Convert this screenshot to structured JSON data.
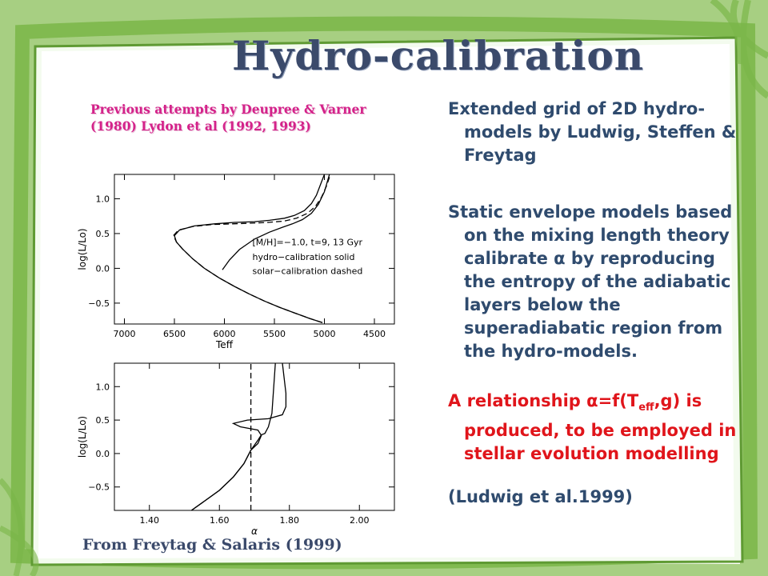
{
  "slide": {
    "title": "Hydro-calibration",
    "previous_attempts": "Previous attempts by Deupree & Varner (1980) Lydon et al (1992, 1993)",
    "paragraphs": {
      "grid": "Extended grid of 2D hydro-models by Ludwig, Steffen & Freytag",
      "static": "Static envelope models based on the mixing length theory calibrate α by reproducing the entropy of the adiabatic layers below the superadiabatic region from the hydro-models.",
      "relation_pre": "A relationship α=f(T",
      "relation_sub": "eff",
      "relation_post": ",g) is produced, to be employed in stellar evolution modelling",
      "reference": "(Ludwig et al.1999)"
    },
    "figure_caption": "From Freytag & Salaris (1999)",
    "colors": {
      "frame_green": "#7ab648",
      "title_blue": "#3b4a6b",
      "body_blue": "#2f4b6e",
      "magenta": "#d4228a",
      "red": "#e0151b"
    }
  },
  "chart_data": [
    {
      "type": "line",
      "title": "",
      "xlabel": "Teff",
      "ylabel": "log(L/Lo)",
      "xlim": [
        7100,
        4300
      ],
      "ylim": [
        -0.8,
        1.35
      ],
      "xticks": [
        7000,
        6500,
        6000,
        5500,
        5000,
        4500
      ],
      "xtick_labels": [
        "7000",
        "6500",
        "6000",
        "5500",
        "5000",
        "4500"
      ],
      "yticks": [
        -0.5,
        0.0,
        0.5,
        1.0
      ],
      "ytick_labels": [
        "−0.5",
        "0.0",
        "0.5",
        "1.0"
      ],
      "annotations": [
        "[M/H]=−1.0, t=9, 13 Gyr",
        "hydro−calibration solid",
        "solar−calibration dashed"
      ],
      "grid": false,
      "series": [
        {
          "style": "solid",
          "x": [
            5020,
            5150,
            5300,
            5450,
            5600,
            5750,
            5900,
            6050,
            6200,
            6320,
            6420,
            6480,
            6500,
            6450,
            6300,
            6100,
            5900,
            5700,
            5550,
            5400,
            5300,
            5200,
            5130,
            5080,
            5040,
            5000
          ],
          "y": [
            -0.78,
            -0.72,
            -0.64,
            -0.56,
            -0.47,
            -0.37,
            -0.26,
            -0.14,
            0.0,
            0.14,
            0.28,
            0.38,
            0.47,
            0.55,
            0.61,
            0.64,
            0.66,
            0.67,
            0.69,
            0.72,
            0.76,
            0.83,
            0.93,
            1.05,
            1.2,
            1.35
          ]
        },
        {
          "style": "solid",
          "x": [
            6020,
            5950,
            5850,
            5700,
            5550,
            5420,
            5320,
            5220,
            5130,
            5060,
            5000,
            4950
          ],
          "y": [
            -0.02,
            0.12,
            0.27,
            0.42,
            0.52,
            0.59,
            0.64,
            0.7,
            0.79,
            0.92,
            1.1,
            1.35
          ]
        },
        {
          "style": "dashed",
          "x": [
            5020,
            5150,
            5300,
            5450,
            5600,
            5750,
            5900,
            6050,
            6200,
            6320,
            6420,
            6480,
            6510,
            6460,
            6320,
            6120,
            5920,
            5720,
            5560,
            5400,
            5280,
            5170,
            5090,
            5030,
            4980,
            4940
          ],
          "y": [
            -0.78,
            -0.72,
            -0.64,
            -0.56,
            -0.47,
            -0.37,
            -0.26,
            -0.14,
            0.0,
            0.14,
            0.28,
            0.38,
            0.47,
            0.55,
            0.6,
            0.63,
            0.64,
            0.65,
            0.66,
            0.68,
            0.72,
            0.79,
            0.89,
            1.02,
            1.18,
            1.35
          ]
        }
      ]
    },
    {
      "type": "line",
      "title": "",
      "xlabel": "α",
      "ylabel": "log(L/Lo)",
      "xlim": [
        1.3,
        2.1
      ],
      "ylim": [
        -0.85,
        1.35
      ],
      "xticks": [
        1.4,
        1.6,
        1.8,
        2.0
      ],
      "xtick_labels": [
        "1.40",
        "1.60",
        "1.80",
        "2.00"
      ],
      "yticks": [
        -0.5,
        0.0,
        0.5,
        1.0
      ],
      "ytick_labels": [
        "−0.5",
        "0.0",
        "0.5",
        "1.0"
      ],
      "grid": false,
      "series": [
        {
          "style": "solid",
          "x": [
            1.52,
            1.56,
            1.6,
            1.64,
            1.67,
            1.69,
            1.71,
            1.72,
            1.73,
            1.74,
            1.75,
            1.76
          ],
          "y": [
            -0.85,
            -0.7,
            -0.55,
            -0.35,
            -0.15,
            0.05,
            0.2,
            0.28,
            0.3,
            0.4,
            0.6,
            1.35
          ]
        },
        {
          "style": "solid",
          "x": [
            1.52,
            1.56,
            1.6,
            1.64,
            1.67,
            1.69,
            1.71,
            1.72,
            1.71,
            1.66,
            1.64,
            1.68,
            1.74,
            1.78,
            1.79,
            1.79,
            1.78
          ],
          "y": [
            -0.85,
            -0.7,
            -0.55,
            -0.35,
            -0.15,
            0.05,
            0.15,
            0.27,
            0.35,
            0.4,
            0.45,
            0.5,
            0.52,
            0.58,
            0.7,
            0.9,
            1.35
          ]
        },
        {
          "style": "dashed",
          "x": [
            1.69,
            1.69
          ],
          "y": [
            -0.85,
            1.35
          ]
        }
      ]
    }
  ]
}
